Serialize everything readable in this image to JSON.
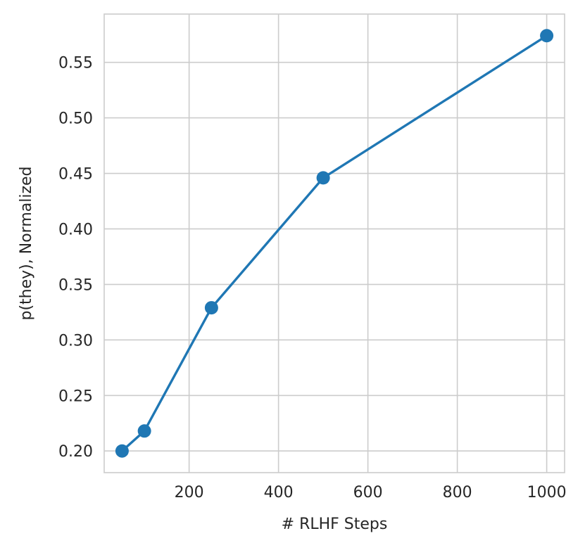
{
  "chart_data": {
    "type": "line",
    "title": "",
    "xlabel": "# RLHF Steps",
    "ylabel": "p(they), Normalized",
    "xlim": [
      10,
      1040
    ],
    "ylim": [
      0.1805,
      0.5935
    ],
    "xticks": [
      200,
      400,
      600,
      800,
      1000
    ],
    "yticks": [
      0.2,
      0.25,
      0.3,
      0.35,
      0.4,
      0.45,
      0.5,
      0.55
    ],
    "grid": true,
    "legend": "none",
    "series": [
      {
        "color": "#1f77b4",
        "marker": "circle",
        "x": [
          50,
          100,
          250,
          500,
          1000
        ],
        "y": [
          0.2,
          0.218,
          0.329,
          0.446,
          0.574
        ]
      }
    ]
  }
}
